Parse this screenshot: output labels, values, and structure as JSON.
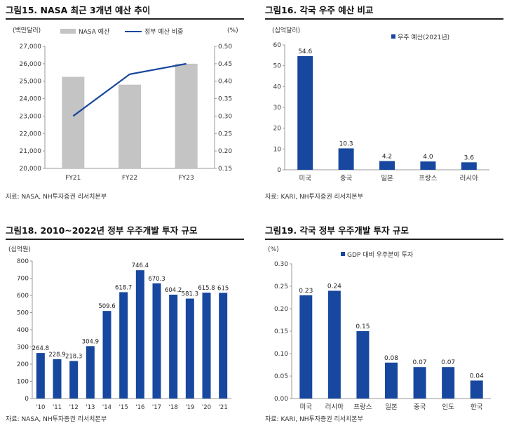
{
  "colors": {
    "gray_bar": "#c4c4c4",
    "blue": "#17479e",
    "axis": "#999999"
  },
  "charts": [
    {
      "title": "그림15. NASA 최근 3개년 예산 추이",
      "source": "자료: NASA, NH투자증권 리서치본부",
      "chart_data": {
        "type": "bar",
        "categories": [
          "FY21",
          "FY22",
          "FY23"
        ],
        "series": [
          {
            "name": "NASA 예산",
            "type": "bar",
            "values": [
              25250,
              24800,
              26000
            ],
            "axis": "left"
          },
          {
            "name": "정부 예산 비중",
            "type": "line",
            "values": [
              0.3,
              0.42,
              0.45
            ],
            "axis": "right"
          }
        ],
        "ylabel": "(백만달러)",
        "y2label": "(%)",
        "ylim": [
          20000,
          27000
        ],
        "y2lim": [
          0.15,
          0.5
        ],
        "yticks": [
          "20,000",
          "21,000",
          "22,000",
          "23,000",
          "24,000",
          "25,000",
          "26,000",
          "27,000"
        ],
        "y2ticks": [
          "0.15",
          "0.20",
          "0.25",
          "0.30",
          "0.35",
          "0.40",
          "0.45",
          "0.50"
        ],
        "legend": "top"
      }
    },
    {
      "title": "그림16. 각국 우주 예산 비교",
      "source": "자료: KARI, NH투자증권 리서치본부",
      "chart_data": {
        "type": "bar",
        "categories": [
          "미국",
          "중국",
          "일본",
          "프랑스",
          "러시아"
        ],
        "series": [
          {
            "name": "우주 예산(2021년)",
            "values": [
              54.6,
              10.3,
              4.2,
              4.0,
              3.6
            ]
          }
        ],
        "labels": [
          "54.6",
          "10.3",
          "4.2",
          "4.0",
          "3.6"
        ],
        "ylabel": "(십억달러)",
        "ylim": [
          0,
          60
        ],
        "yticks": [
          "0",
          "10",
          "20",
          "30",
          "40",
          "50",
          "60"
        ],
        "legend": "top-right"
      }
    },
    {
      "title": "그림18. 2010~2022년 정부 우주개발 투자 규모",
      "source": "자료: NASA, NH투자증권 리서치본부",
      "chart_data": {
        "type": "bar",
        "categories": [
          "'10",
          "'11",
          "'12",
          "'13",
          "'14",
          "'15",
          "'16",
          "'17",
          "'18",
          "'19",
          "'20",
          "'21"
        ],
        "values": [
          264.8,
          228.9,
          218.3,
          304.9,
          509.6,
          618.7,
          746.4,
          670.3,
          604.2,
          581.3,
          615.8,
          615
        ],
        "labels": [
          "264.8",
          "228.9",
          "218.3",
          "304.9",
          "509.6",
          "618.7",
          "746.4",
          "670.3",
          "604.2",
          "581.3",
          "615.8",
          "615"
        ],
        "ylabel": "(십억원)",
        "ylim": [
          0,
          800
        ],
        "yticks": [
          "0",
          "100",
          "200",
          "300",
          "400",
          "500",
          "600",
          "700",
          "800"
        ]
      }
    },
    {
      "title": "그림19. 각국 정부 우주개발 투자 규모",
      "source": "자료: KARI, NH투자증권 리서치본부",
      "chart_data": {
        "type": "bar",
        "categories": [
          "미국",
          "러시아",
          "프랑스",
          "일본",
          "중국",
          "인도",
          "한국"
        ],
        "series": [
          {
            "name": "GDP 대비 우주분야 투자",
            "values": [
              0.23,
              0.24,
              0.15,
              0.08,
              0.07,
              0.07,
              0.04
            ]
          }
        ],
        "labels": [
          "0.23",
          "0.24",
          "0.15",
          "0.08",
          "0.07",
          "0.07",
          "0.04"
        ],
        "ylabel": "(%)",
        "ylim": [
          0,
          0.3
        ],
        "yticks": [
          "0.00",
          "0.05",
          "0.10",
          "0.15",
          "0.20",
          "0.25",
          "0.30"
        ],
        "legend": "top"
      }
    }
  ]
}
